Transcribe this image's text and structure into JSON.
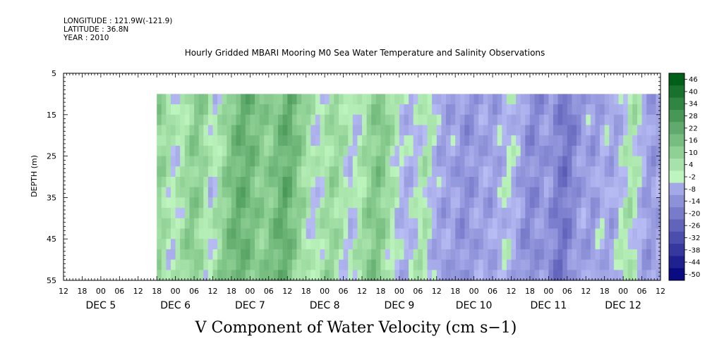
{
  "header": {
    "longitude": "LONGITUDE : 121.9W(-121.9)",
    "latitude": "LATITUDE : 36.8N",
    "year": "YEAR : 2010",
    "title": "Hourly Gridded MBARI Mooring M0 Sea Water Temperature and Salinity Observations",
    "footer": "V Component of Water Velocity (cm s−1)"
  },
  "colors": {
    "frame": "#000000",
    "strong_positive": "#006b1f",
    "positive": "#00d23c",
    "weak_positive": "#a8f0a8",
    "weak_negative": "#aab0f0",
    "negative": "#5a78f0",
    "strong_negative": "#0a0a8c"
  },
  "chart_data": {
    "type": "heatmap",
    "title": "Hourly Gridded MBARI Mooring M0 Sea Water Temperature and Salinity Observations",
    "xlabel": "",
    "ylabel": "DEPTH (m)",
    "colorbar_label": "V Component of Water Velocity (cm s-1)",
    "x_unit": "hours since DEC 5 00:00, 2010",
    "xlim": [
      -12,
      180
    ],
    "ylim": [
      55,
      5
    ],
    "y_ticks": [
      5,
      15,
      25,
      35,
      45,
      55
    ],
    "y_tick_labels": [
      "5",
      "15",
      "25",
      "35",
      "45",
      "55"
    ],
    "data_depth_range": [
      10,
      55
    ],
    "data_time_start": 18,
    "x_hour_labels": [
      "12",
      "18",
      "00",
      "06",
      "12",
      "18",
      "00",
      "06",
      "12",
      "18",
      "00",
      "06",
      "12",
      "18",
      "00",
      "06",
      "12",
      "18",
      "00",
      "06",
      "12",
      "18",
      "00",
      "06",
      "12",
      "18",
      "00",
      "06",
      "12",
      "18",
      "00",
      "06",
      "12"
    ],
    "day_labels": [
      {
        "label": "DEC  5",
        "hour": 0
      },
      {
        "label": "DEC  6",
        "hour": 24
      },
      {
        "label": "DEC  7",
        "hour": 48
      },
      {
        "label": "DEC  8",
        "hour": 72
      },
      {
        "label": "DEC  9",
        "hour": 96
      },
      {
        "label": "DEC 10",
        "hour": 120
      },
      {
        "label": "DEC 11",
        "hour": 144
      },
      {
        "label": "DEC 12",
        "hour": 168
      }
    ],
    "colorbar_levels": [
      -50,
      -44,
      -38,
      -32,
      -26,
      -20,
      -14,
      -8,
      -2,
      4,
      10,
      16,
      22,
      28,
      34,
      40,
      46
    ],
    "colorbar_labels": [
      "46",
      "40",
      "34",
      "28",
      "22",
      "16",
      "10",
      "4",
      "-2",
      "-8",
      "-14",
      "-20",
      "-26",
      "-32",
      "-38",
      "-44",
      "-50"
    ],
    "velocity_profile": {
      "hours": [
        18,
        21,
        24,
        27,
        30,
        33,
        36,
        39,
        42,
        45,
        48,
        51,
        54,
        57,
        60,
        63,
        66,
        69,
        72,
        75,
        78,
        81,
        84,
        87,
        90,
        93,
        96,
        99,
        102,
        105,
        108,
        111,
        114,
        117,
        120,
        123,
        126,
        129,
        132,
        135,
        138,
        141,
        144,
        147,
        150,
        153,
        156,
        159,
        162,
        165,
        168,
        171,
        174,
        177,
        180
      ],
      "values": [
        10,
        6,
        -2,
        4,
        12,
        8,
        -3,
        6,
        14,
        20,
        18,
        12,
        10,
        16,
        22,
        14,
        6,
        -2,
        2,
        8,
        4,
        -4,
        2,
        10,
        14,
        6,
        -2,
        -6,
        -2,
        4,
        -6,
        -10,
        -8,
        -14,
        -12,
        -8,
        -10,
        -6,
        -2,
        -8,
        -16,
        -14,
        -10,
        -18,
        -22,
        -14,
        -8,
        -12,
        -4,
        -10,
        -2,
        4,
        -4,
        -12,
        -8
      ]
    }
  }
}
